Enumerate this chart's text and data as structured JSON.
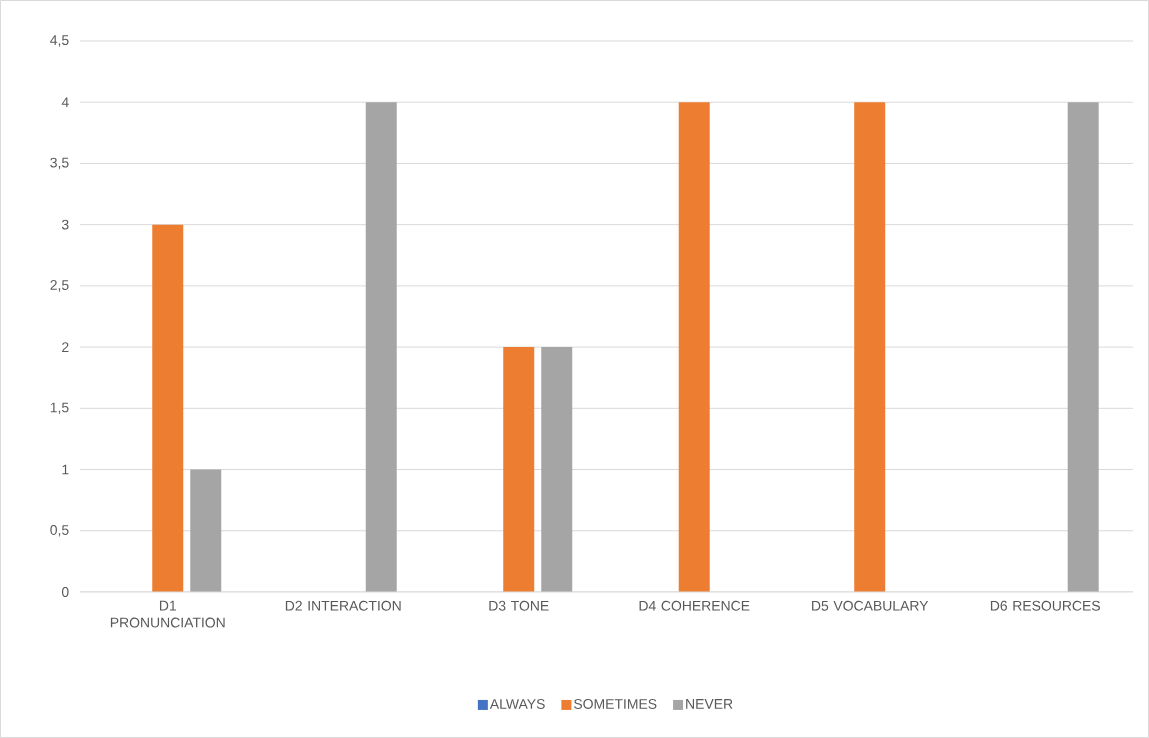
{
  "chart_data": {
    "type": "bar",
    "categories": [
      "D1 PRONUNCIATION",
      "D2 INTERACTION",
      "D3 TONE",
      "D4 COHERENCE",
      "D5 VOCABULARY",
      "D6 RESOURCES"
    ],
    "series": [
      {
        "name": "ALWAYS",
        "color": "#4472c4",
        "values": [
          0,
          0,
          0,
          0,
          0,
          0
        ]
      },
      {
        "name": "SOMETIMES",
        "color": "#ed7d31",
        "values": [
          3,
          0,
          2,
          4,
          4,
          0
        ]
      },
      {
        "name": "NEVER",
        "color": "#a5a5a5",
        "values": [
          1,
          4,
          2,
          0,
          0,
          4
        ]
      }
    ],
    "ylim": [
      0,
      4.5
    ],
    "yticks": [
      0,
      {
        "value": 0.5,
        "label": "0,5"
      },
      1,
      {
        "value": 1.5,
        "label": "1,5"
      },
      2,
      {
        "value": 2.5,
        "label": "2,5"
      },
      3,
      {
        "value": 3.5,
        "label": "3,5"
      },
      4,
      {
        "value": 4.5,
        "label": "4,5"
      }
    ],
    "grid": "y",
    "legend": "bottom"
  }
}
